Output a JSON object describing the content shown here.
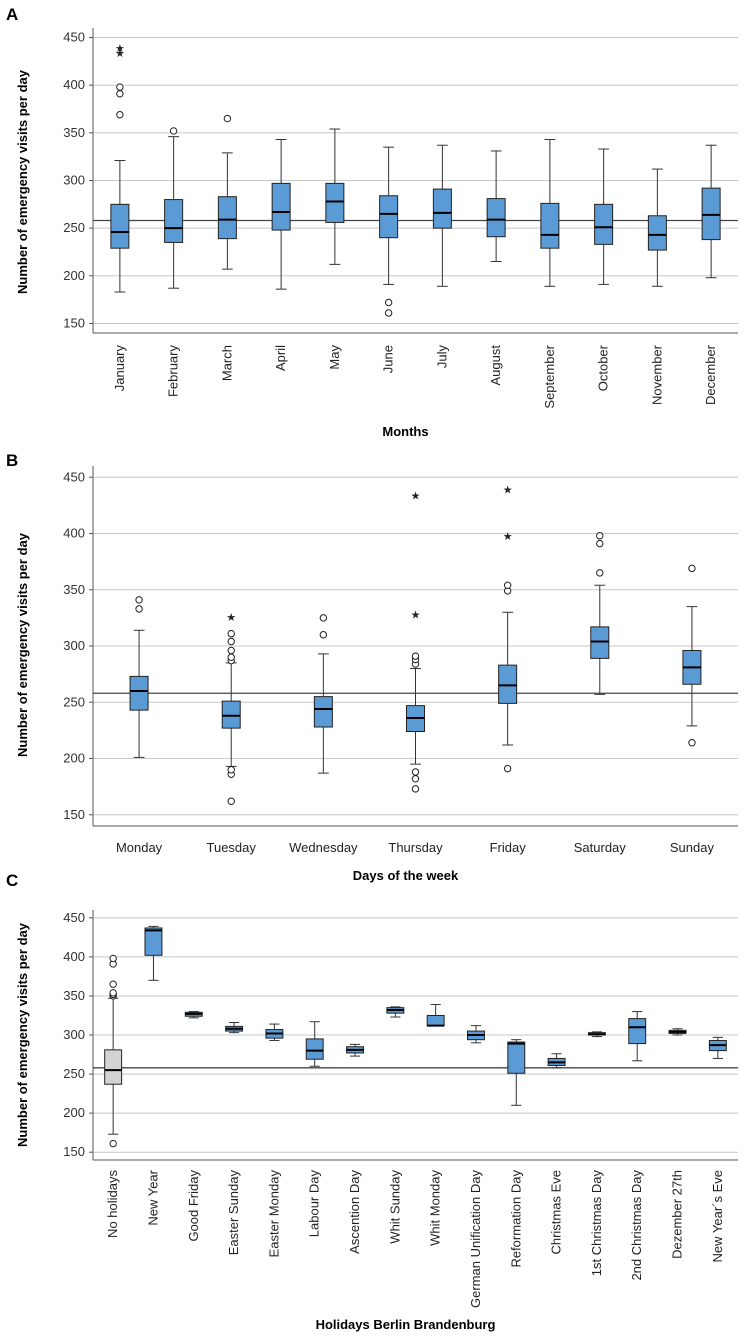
{
  "chart_data": [
    {
      "type": "box",
      "panel": "A",
      "xlabel": "Months",
      "ylabel": "Number of emergency visits per day",
      "ylim": [
        140,
        460
      ],
      "yticks": [
        150,
        200,
        250,
        300,
        350,
        400,
        450
      ],
      "reference_line": 258,
      "box_color": "#5b9bd5",
      "categories": [
        "January",
        "February",
        "March",
        "April",
        "May",
        "June",
        "July",
        "August",
        "September",
        "October",
        "November",
        "December"
      ],
      "boxes": [
        {
          "min": 183,
          "q1": 229,
          "median": 246,
          "q3": 275,
          "max": 321,
          "outliers": [
            369,
            391,
            398
          ],
          "extremes": [
            434,
            439
          ]
        },
        {
          "min": 187,
          "q1": 235,
          "median": 250,
          "q3": 280,
          "max": 346,
          "outliers": [
            352
          ],
          "extremes": []
        },
        {
          "min": 207,
          "q1": 239,
          "median": 259,
          "q3": 283,
          "max": 329,
          "outliers": [
            365
          ],
          "extremes": []
        },
        {
          "min": 186,
          "q1": 248,
          "median": 267,
          "q3": 297,
          "max": 343,
          "outliers": [],
          "extremes": []
        },
        {
          "min": 212,
          "q1": 256,
          "median": 278,
          "q3": 297,
          "max": 354,
          "outliers": [],
          "extremes": []
        },
        {
          "min": 191,
          "q1": 240,
          "median": 265,
          "q3": 284,
          "max": 335,
          "outliers": [
            161,
            172
          ],
          "extremes": []
        },
        {
          "min": 189,
          "q1": 250,
          "median": 266,
          "q3": 291,
          "max": 337,
          "outliers": [],
          "extremes": []
        },
        {
          "min": 215,
          "q1": 241,
          "median": 259,
          "q3": 281,
          "max": 331,
          "outliers": [],
          "extremes": []
        },
        {
          "min": 189,
          "q1": 229,
          "median": 243,
          "q3": 276,
          "max": 343,
          "outliers": [],
          "extremes": []
        },
        {
          "min": 191,
          "q1": 233,
          "median": 251,
          "q3": 275,
          "max": 333,
          "outliers": [],
          "extremes": []
        },
        {
          "min": 189,
          "q1": 227,
          "median": 243,
          "q3": 263,
          "max": 312,
          "outliers": [],
          "extremes": []
        },
        {
          "min": 198,
          "q1": 238,
          "median": 264,
          "q3": 292,
          "max": 337,
          "outliers": [],
          "extremes": []
        }
      ]
    },
    {
      "type": "box",
      "panel": "B",
      "xlabel": "Days of the week",
      "ylabel": "Number of emergency visits per day",
      "ylim": [
        140,
        460
      ],
      "yticks": [
        150,
        200,
        250,
        300,
        350,
        400,
        450
      ],
      "reference_line": 258,
      "box_color": "#5b9bd5",
      "categories": [
        "Monday",
        "Tuesday",
        "Wednesday",
        "Thursday",
        "Friday",
        "Saturday",
        "Sunday"
      ],
      "boxes": [
        {
          "min": 201,
          "q1": 243,
          "median": 260,
          "q3": 273,
          "max": 314,
          "outliers": [
            333,
            341
          ],
          "extremes": []
        },
        {
          "min": 193,
          "q1": 227,
          "median": 238,
          "q3": 251,
          "max": 285,
          "outliers": [
            162,
            186,
            190,
            287,
            290,
            296,
            304,
            311
          ],
          "extremes": [
            326
          ]
        },
        {
          "min": 187,
          "q1": 228,
          "median": 244,
          "q3": 255,
          "max": 293,
          "outliers": [
            310,
            325
          ],
          "extremes": []
        },
        {
          "min": 195,
          "q1": 224,
          "median": 236,
          "q3": 247,
          "max": 280,
          "outliers": [
            173,
            182,
            188,
            284,
            288,
            291
          ],
          "extremes": [
            328,
            434
          ]
        },
        {
          "min": 212,
          "q1": 249,
          "median": 265,
          "q3": 283,
          "max": 330,
          "outliers": [
            191,
            349,
            354
          ],
          "extremes": [
            398,
            439
          ]
        },
        {
          "min": 257,
          "q1": 289,
          "median": 304,
          "q3": 317,
          "max": 354,
          "outliers": [
            365,
            391,
            398
          ],
          "extremes": []
        },
        {
          "min": 229,
          "q1": 266,
          "median": 281,
          "q3": 296,
          "max": 335,
          "outliers": [
            214,
            369
          ],
          "extremes": []
        }
      ]
    },
    {
      "type": "box",
      "panel": "C",
      "xlabel": "Holidays Berlin Brandenburg",
      "ylabel": "Number of emergency visits per day",
      "ylim": [
        140,
        460
      ],
      "yticks": [
        150,
        200,
        250,
        300,
        350,
        400,
        450
      ],
      "reference_line": 258,
      "box_color": "#5b9bd5",
      "first_box_color": "#d3d3d3",
      "categories": [
        "No holidays",
        "New Year",
        "Good Friday",
        "Easter Sunday",
        "Easter Monday",
        "Labour Day",
        "Ascention Day",
        "Whit Sunday",
        "Whit Monday",
        "German Unification Day",
        "Reformation Day",
        "Christmas Eve",
        "1st Christmas Day",
        "2nd Christmas Day",
        "Dezember 27th",
        "New Year´s Eve"
      ],
      "boxes": [
        {
          "min": 173,
          "q1": 237,
          "median": 255,
          "q3": 281,
          "max": 347,
          "outliers": [
            161,
            350,
            352,
            354,
            365,
            391,
            398
          ],
          "extremes": []
        },
        {
          "min": 370,
          "q1": 402,
          "median": 434,
          "q3": 437,
          "max": 439,
          "outliers": [],
          "extremes": []
        },
        {
          "min": 322,
          "q1": 324,
          "median": 327,
          "q3": 329,
          "max": 330,
          "outliers": [],
          "extremes": []
        },
        {
          "min": 303,
          "q1": 305,
          "median": 308,
          "q3": 311,
          "max": 316,
          "outliers": [],
          "extremes": []
        },
        {
          "min": 293,
          "q1": 296,
          "median": 302,
          "q3": 307,
          "max": 314,
          "outliers": [],
          "extremes": []
        },
        {
          "min": 260,
          "q1": 269,
          "median": 280,
          "q3": 295,
          "max": 317,
          "outliers": [],
          "extremes": []
        },
        {
          "min": 273,
          "q1": 277,
          "median": 281,
          "q3": 285,
          "max": 288,
          "outliers": [],
          "extremes": []
        },
        {
          "min": 323,
          "q1": 328,
          "median": 332,
          "q3": 335,
          "max": 336,
          "outliers": [],
          "extremes": []
        },
        {
          "min": 312,
          "q1": 312,
          "median": 312,
          "q3": 325,
          "max": 339,
          "outliers": [],
          "extremes": []
        },
        {
          "min": 290,
          "q1": 294,
          "median": 300,
          "q3": 305,
          "max": 312,
          "outliers": [],
          "extremes": []
        },
        {
          "min": 210,
          "q1": 251,
          "median": 289,
          "q3": 291,
          "max": 294,
          "outliers": [],
          "extremes": []
        },
        {
          "min": 258,
          "q1": 261,
          "median": 265,
          "q3": 270,
          "max": 276,
          "outliers": [],
          "extremes": []
        },
        {
          "min": 298,
          "q1": 300,
          "median": 301,
          "q3": 303,
          "max": 304,
          "outliers": [],
          "extremes": []
        },
        {
          "min": 267,
          "q1": 289,
          "median": 310,
          "q3": 321,
          "max": 330,
          "outliers": [],
          "extremes": []
        },
        {
          "min": 300,
          "q1": 302,
          "median": 304,
          "q3": 306,
          "max": 308,
          "outliers": [],
          "extremes": []
        },
        {
          "min": 270,
          "q1": 280,
          "median": 287,
          "q3": 293,
          "max": 297,
          "outliers": [],
          "extremes": []
        }
      ]
    }
  ]
}
